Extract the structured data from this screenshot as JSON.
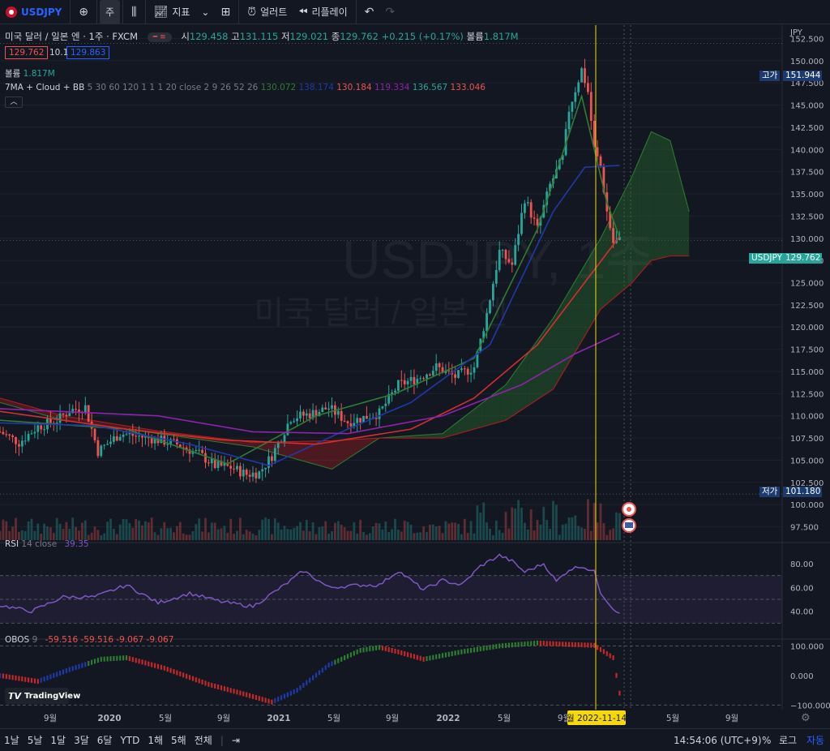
{
  "toolbar": {
    "symbol": "USDJPY",
    "interval": "주",
    "indicators": "지표",
    "alert": "얼러트",
    "replay": "리플레이"
  },
  "legend": {
    "title": "미국 달러 / 일본 엔 · 1주 · FXCM",
    "o_label": "시",
    "o": "129.458",
    "h_label": "고",
    "h": "131.115",
    "l_label": "저",
    "l": "129.021",
    "c_label": "종",
    "c": "129.762",
    "change": "+0.215 (+0.17%)",
    "vol_label": "볼륨",
    "vol": "1.817M"
  },
  "quote": {
    "bid": "129.762",
    "spread": "10.1",
    "ask": "129.863"
  },
  "volume": {
    "label": "볼륨",
    "value": "1.817M"
  },
  "ma_legend": {
    "label": "7MA + Cloud + BB",
    "params": "5 30 60 120 1 1 1 20 close 2 9 26 52 26",
    "v1": "130.072",
    "v2": "138.174",
    "v3": "130.184",
    "v4": "119.334",
    "v5": "136.567",
    "v6": "133.046"
  },
  "rsi_legend": {
    "label": "RSI",
    "params": "14 close",
    "value": "39.35"
  },
  "obos_legend": {
    "label": "OBOS",
    "params": "9",
    "v1": "-59.516",
    "v2": "-59.516",
    "v3": "-9.067",
    "v4": "-9.067"
  },
  "watermark": {
    "symbol": "USDJPY, 1주",
    "name": "미국 달러 / 일본 엔"
  },
  "axis": {
    "currency": "JPY",
    "high_label": "고가",
    "high": "151.944",
    "last_label": "USDJPY",
    "last": "129.762",
    "low_label": "저가",
    "low": "101.180",
    "crosshair": "월 2022-11-14"
  },
  "branding": "TradingView",
  "statusbar": {
    "ranges": [
      "1날",
      "5날",
      "1달",
      "3달",
      "6달",
      "YTD",
      "1해",
      "5해",
      "전체"
    ],
    "clock": "14:54:06 (UTC+9)",
    "pct": "%",
    "log": "로그",
    "auto": "자동"
  },
  "colors": {
    "up": "#26a69a",
    "down": "#ef5350",
    "bg": "#131722",
    "accent": "#2962ff",
    "rsi": "#7e57c2",
    "crosshair": "#f5d90a"
  },
  "chart_data": [
    {
      "type": "line",
      "name": "price",
      "xlabel": "",
      "ylabel": "JPY",
      "ylim": [
        96,
        154
      ],
      "x_ticks": [
        "9월",
        "2020",
        "5월",
        "9월",
        "2021",
        "5월",
        "9월",
        "2022",
        "5월",
        "9월",
        "월 2022-11-14",
        "5월",
        "9월"
      ],
      "y_ticks": [
        97.5,
        100,
        102.5,
        105,
        107.5,
        110,
        112.5,
        115,
        117.5,
        120,
        122.5,
        125,
        127.5,
        130,
        132.5,
        135,
        137.5,
        140,
        142.5,
        145,
        147.5,
        150,
        152.5
      ],
      "close_anchors": [
        [
          0,
          108.2
        ],
        [
          6,
          107.0
        ],
        [
          12,
          108.8
        ],
        [
          18,
          109.5
        ],
        [
          22,
          110.6
        ],
        [
          27,
          111.0
        ],
        [
          31,
          106.0
        ],
        [
          38,
          108.0
        ],
        [
          44,
          107.7
        ],
        [
          50,
          107.3
        ],
        [
          56,
          106.8
        ],
        [
          63,
          105.7
        ],
        [
          68,
          104.4
        ],
        [
          73,
          104.2
        ],
        [
          78,
          103.4
        ],
        [
          82,
          103.6
        ],
        [
          86,
          105.5
        ],
        [
          92,
          109.8
        ],
        [
          98,
          110.2
        ],
        [
          104,
          110.9
        ],
        [
          110,
          109.3
        ],
        [
          116,
          109.9
        ],
        [
          120,
          110.3
        ],
        [
          126,
          113.5
        ],
        [
          132,
          114.2
        ],
        [
          138,
          115.5
        ],
        [
          144,
          114.4
        ],
        [
          150,
          115.5
        ],
        [
          154,
          121.5
        ],
        [
          158,
          128.5
        ],
        [
          162,
          127.0
        ],
        [
          166,
          134.5
        ],
        [
          170,
          131.0
        ],
        [
          174,
          136.0
        ],
        [
          178,
          139.0
        ],
        [
          180,
          144.5
        ],
        [
          184,
          149.0
        ],
        [
          186,
          146.5
        ],
        [
          188,
          140.0
        ],
        [
          190,
          138.0
        ],
        [
          192,
          133.0
        ],
        [
          194,
          129.5
        ],
        [
          196,
          129.762
        ]
      ],
      "ma_short": [
        [
          0,
          109.5
        ],
        [
          40,
          108.5
        ],
        [
          72,
          104.6
        ],
        [
          100,
          110.0
        ],
        [
          125,
          112.5
        ],
        [
          150,
          116.5
        ],
        [
          170,
          131.0
        ],
        [
          184,
          146.0
        ],
        [
          192,
          134.0
        ],
        [
          196,
          130.1
        ]
      ],
      "ma_mid": [
        [
          0,
          109.2
        ],
        [
          30,
          108.9
        ],
        [
          60,
          106.8
        ],
        [
          85,
          104.4
        ],
        [
          110,
          108.5
        ],
        [
          130,
          111.5
        ],
        [
          155,
          118.0
        ],
        [
          175,
          133.0
        ],
        [
          185,
          138.0
        ],
        [
          196,
          138.2
        ]
      ],
      "ma_long": [
        [
          0,
          110.5
        ],
        [
          40,
          108.5
        ],
        [
          70,
          107.3
        ],
        [
          100,
          106.8
        ],
        [
          130,
          108.5
        ],
        [
          150,
          112.0
        ],
        [
          170,
          118.0
        ],
        [
          186,
          125.5
        ],
        [
          196,
          130.2
        ]
      ],
      "ma_xlong": [
        [
          0,
          110.8
        ],
        [
          50,
          110.0
        ],
        [
          80,
          108.2
        ],
        [
          110,
          108.0
        ],
        [
          140,
          110.0
        ],
        [
          165,
          113.5
        ],
        [
          182,
          117.0
        ],
        [
          196,
          119.3
        ]
      ],
      "cloud_a": [
        [
          0,
          111.5
        ],
        [
          20,
          109.5
        ],
        [
          50,
          108.0
        ],
        [
          80,
          106.5
        ],
        [
          105,
          104.0
        ],
        [
          120,
          107.5
        ],
        [
          140,
          108.0
        ],
        [
          160,
          113.5
        ],
        [
          175,
          121.0
        ],
        [
          190,
          130.0
        ],
        [
          200,
          137.0
        ],
        [
          206,
          142.0
        ],
        [
          212,
          141.0
        ],
        [
          218,
          133.0
        ]
      ],
      "cloud_b": [
        [
          0,
          112.0
        ],
        [
          20,
          110.0
        ],
        [
          50,
          108.3
        ],
        [
          80,
          107.0
        ],
        [
          105,
          107.2
        ],
        [
          120,
          107.5
        ],
        [
          140,
          107.5
        ],
        [
          160,
          109.5
        ],
        [
          175,
          113.0
        ],
        [
          190,
          122.0
        ],
        [
          200,
          125.0
        ],
        [
          206,
          127.5
        ],
        [
          212,
          128.0
        ],
        [
          218,
          128.0
        ]
      ]
    },
    {
      "type": "line",
      "name": "RSI 14",
      "ylim": [
        20,
        95
      ],
      "y_ticks": [
        40,
        60,
        80
      ],
      "bands": [
        30,
        50,
        70
      ],
      "last": 39.35,
      "anchors": [
        [
          0,
          45
        ],
        [
          10,
          40
        ],
        [
          20,
          52
        ],
        [
          30,
          52
        ],
        [
          40,
          62
        ],
        [
          50,
          47
        ],
        [
          60,
          55
        ],
        [
          70,
          48
        ],
        [
          80,
          44
        ],
        [
          90,
          62
        ],
        [
          96,
          74
        ],
        [
          104,
          60
        ],
        [
          114,
          62
        ],
        [
          120,
          62
        ],
        [
          126,
          74
        ],
        [
          134,
          58
        ],
        [
          140,
          66
        ],
        [
          146,
          62
        ],
        [
          152,
          78
        ],
        [
          158,
          87
        ],
        [
          162,
          82
        ],
        [
          166,
          73
        ],
        [
          172,
          80
        ],
        [
          176,
          65
        ],
        [
          180,
          75
        ],
        [
          184,
          78
        ],
        [
          188,
          73
        ],
        [
          190,
          56
        ],
        [
          194,
          42
        ],
        [
          196,
          39.35
        ]
      ]
    },
    {
      "type": "bar",
      "name": "OBOS 9",
      "ylim": [
        -110,
        115
      ],
      "y_ticks": [
        100,
        0,
        -100
      ],
      "dashed": [
        100,
        -100
      ],
      "last": -59.516,
      "anchors": [
        [
          0,
          0
        ],
        [
          12,
          -20
        ],
        [
          22,
          20
        ],
        [
          32,
          55
        ],
        [
          40,
          60
        ],
        [
          52,
          25
        ],
        [
          66,
          -30
        ],
        [
          78,
          -65
        ],
        [
          86,
          -90
        ],
        [
          94,
          -50
        ],
        [
          104,
          35
        ],
        [
          114,
          85
        ],
        [
          120,
          95
        ],
        [
          126,
          80
        ],
        [
          134,
          55
        ],
        [
          146,
          80
        ],
        [
          158,
          100
        ],
        [
          170,
          110
        ],
        [
          180,
          105
        ],
        [
          188,
          102
        ],
        [
          194,
          60
        ],
        [
          196,
          -59.5
        ]
      ]
    }
  ]
}
